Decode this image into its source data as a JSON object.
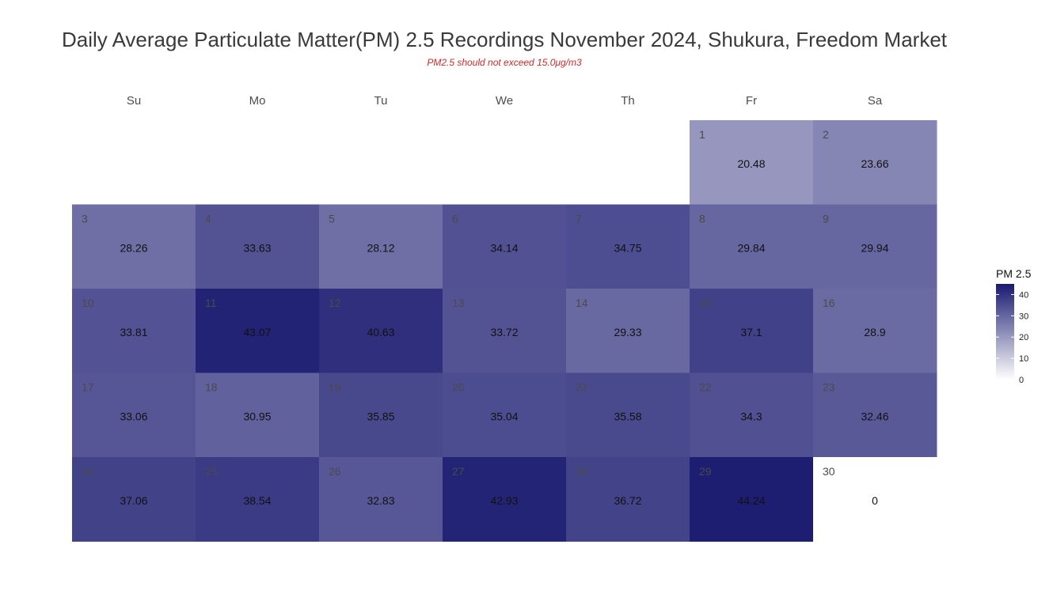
{
  "chart_data": {
    "type": "heatmap",
    "title": "Daily Average Particulate Matter(PM) 2.5 Recordings November 2024,  Shukura, Freedom Market",
    "subtitle": "PM2.5 should not exceed 15.0μg/m3",
    "weekdays": [
      "Su",
      "Mo",
      "Tu",
      "We",
      "Th",
      "Fr",
      "Sa"
    ],
    "first_weekday_index": 5,
    "days": [
      1,
      2,
      3,
      4,
      5,
      6,
      7,
      8,
      9,
      10,
      11,
      12,
      13,
      14,
      15,
      16,
      17,
      18,
      19,
      20,
      21,
      22,
      23,
      24,
      25,
      26,
      27,
      28,
      29,
      30
    ],
    "values": [
      "20.48",
      "23.66",
      "28.26",
      "33.63",
      "28.12",
      "34.14",
      "34.75",
      "29.84",
      "29.94",
      "33.81",
      "43.07",
      "40.63",
      "33.72",
      "29.33",
      "37.1",
      "28.9",
      "33.06",
      "30.95",
      "35.85",
      "35.04",
      "35.58",
      "34.3",
      "32.46",
      "37.06",
      "38.54",
      "32.83",
      "42.93",
      "36.72",
      "44.24",
      "0"
    ],
    "legend": {
      "title": "PM 2.5",
      "ticks": [
        "0",
        "10",
        "20",
        "30",
        "40"
      ],
      "tick_values": [
        0,
        10,
        20,
        30,
        40
      ],
      "range": [
        0,
        45
      ]
    },
    "color_scale": {
      "low": "#ffffff",
      "high": "#191970"
    }
  }
}
